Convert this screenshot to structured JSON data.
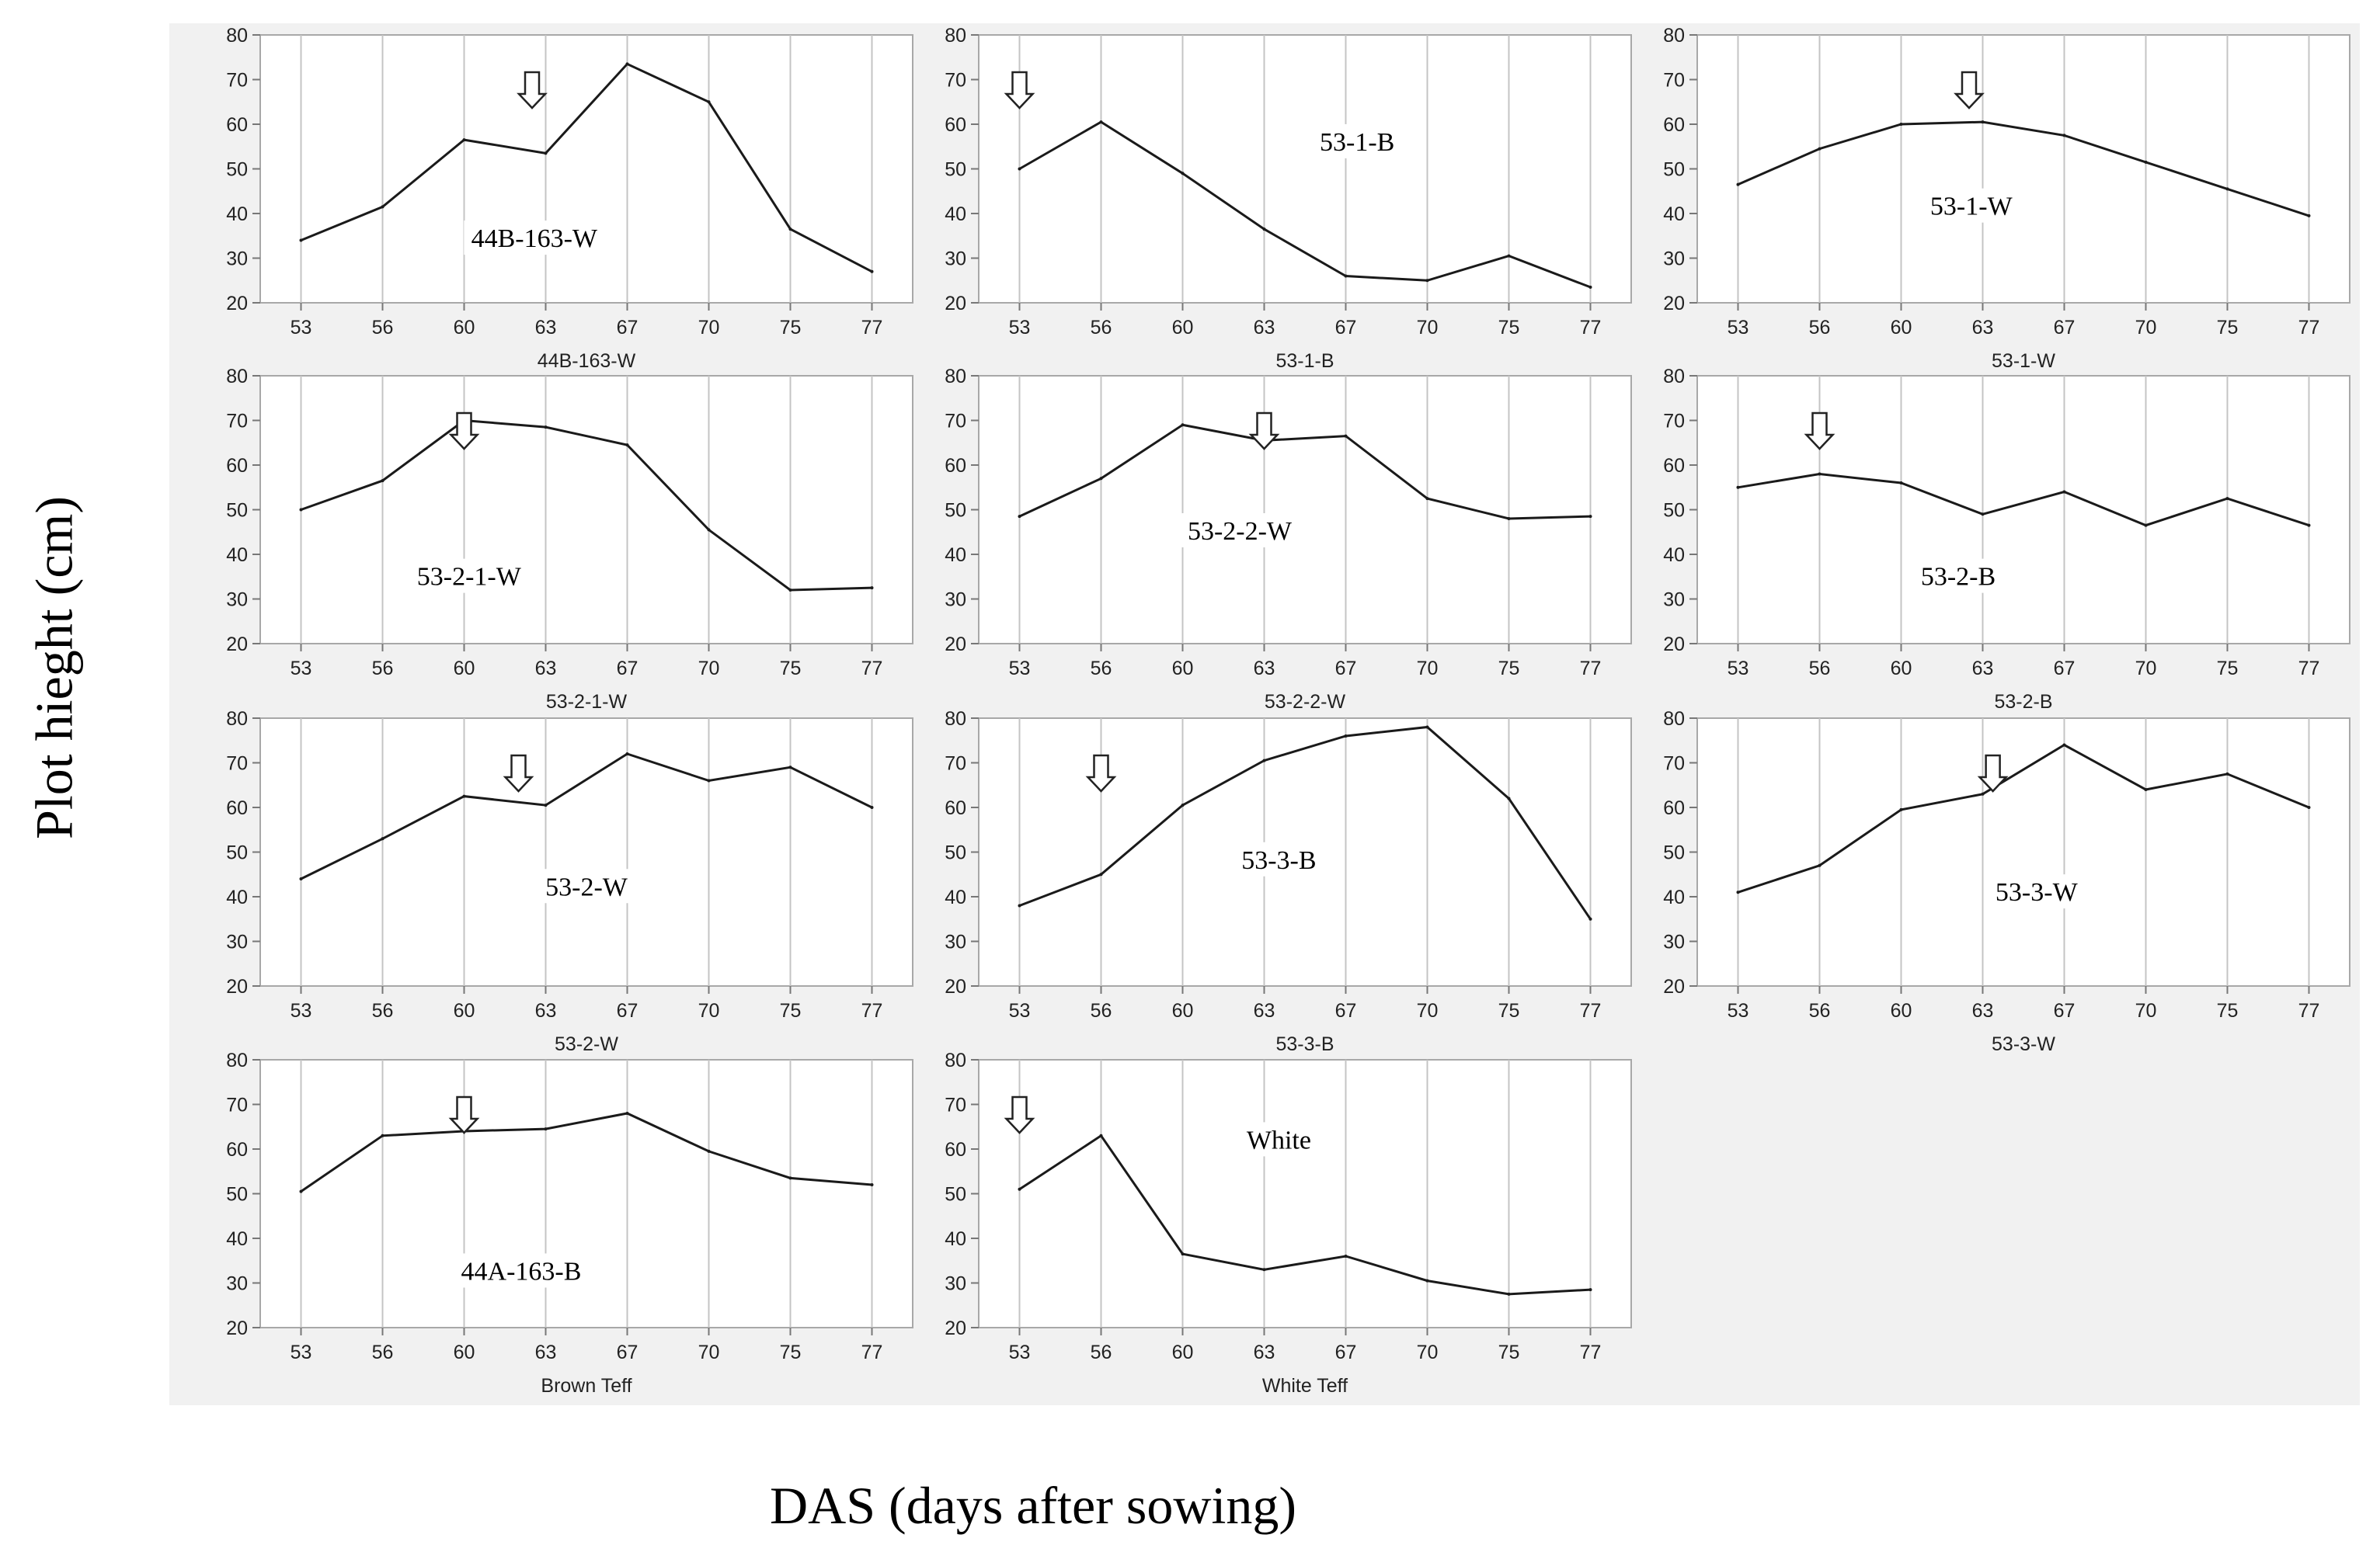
{
  "figure": {
    "y_axis_label": "Plot hieght (cm)",
    "x_axis_label": "DAS (days after sowing)"
  },
  "chart_data": [
    {
      "type": "line",
      "title": "44B-163-W",
      "inner_label": "44B-163-W",
      "xlabel": "44B-163-W",
      "categories": [
        "53",
        "56",
        "60",
        "63",
        "67",
        "70",
        "75",
        "77"
      ],
      "values": [
        34,
        41.5,
        56.5,
        53.5,
        73.5,
        65,
        36.5,
        27
      ],
      "ylim": [
        20,
        80
      ],
      "yticks": [
        20,
        30,
        40,
        50,
        60,
        70,
        80
      ],
      "arrow_x": 62.5
    },
    {
      "type": "line",
      "title": "53-1-B",
      "inner_label": "53-1-B",
      "xlabel": "53-1-B",
      "categories": [
        "53",
        "56",
        "60",
        "63",
        "67",
        "70",
        "75",
        "77"
      ],
      "values": [
        50,
        60.5,
        49,
        36.5,
        26,
        25,
        30.5,
        23.5
      ],
      "ylim": [
        20,
        80
      ],
      "yticks": [
        20,
        30,
        40,
        50,
        60,
        70,
        80
      ],
      "arrow_x": 53
    },
    {
      "type": "line",
      "title": "53-1-W",
      "inner_label": "53-1-W",
      "xlabel": "53-1-W",
      "categories": [
        "53",
        "56",
        "60",
        "63",
        "67",
        "70",
        "75",
        "77"
      ],
      "values": [
        46.5,
        54.5,
        60,
        60.5,
        57.5,
        51.5,
        45.5,
        39.5
      ],
      "ylim": [
        20,
        80
      ],
      "yticks": [
        20,
        30,
        40,
        50,
        60,
        70,
        80
      ],
      "arrow_x": 62.5
    },
    {
      "type": "line",
      "title": "53-2-1-W",
      "inner_label": "53-2-1-W",
      "xlabel": "53-2-1-W",
      "categories": [
        "53",
        "56",
        "60",
        "63",
        "67",
        "70",
        "75",
        "77"
      ],
      "values": [
        50,
        56.5,
        70,
        68.5,
        64.5,
        45.5,
        32,
        32.5
      ],
      "ylim": [
        20,
        80
      ],
      "yticks": [
        20,
        30,
        40,
        50,
        60,
        70,
        80
      ],
      "arrow_x": 60
    },
    {
      "type": "line",
      "title": "53-2-2-W",
      "inner_label": "53-2-2-W",
      "xlabel": "53-2-2-W",
      "categories": [
        "53",
        "56",
        "60",
        "63",
        "67",
        "70",
        "75",
        "77"
      ],
      "values": [
        48.5,
        57,
        69,
        65.5,
        66.5,
        52.5,
        48,
        48.5
      ],
      "ylim": [
        20,
        80
      ],
      "yticks": [
        20,
        30,
        40,
        50,
        60,
        70,
        80
      ],
      "arrow_x": 63
    },
    {
      "type": "line",
      "title": "53-2-B",
      "inner_label": "53-2-B",
      "xlabel": "53-2-B",
      "categories": [
        "53",
        "56",
        "60",
        "63",
        "67",
        "70",
        "75",
        "77"
      ],
      "values": [
        55,
        58,
        56,
        49,
        54,
        46.5,
        52.5,
        46.5
      ],
      "ylim": [
        20,
        80
      ],
      "yticks": [
        20,
        30,
        40,
        50,
        60,
        70,
        80
      ],
      "arrow_x": 56
    },
    {
      "type": "line",
      "title": "53-2-W",
      "inner_label": "53-2-W",
      "xlabel": "53-2-W",
      "categories": [
        "53",
        "56",
        "60",
        "63",
        "67",
        "70",
        "75",
        "77"
      ],
      "values": [
        44,
        53,
        62.5,
        60.5,
        72,
        66,
        69,
        60
      ],
      "ylim": [
        20,
        80
      ],
      "yticks": [
        20,
        30,
        40,
        50,
        60,
        70,
        80
      ],
      "arrow_x": 62
    },
    {
      "type": "line",
      "title": "53-3-B",
      "inner_label": "53-3-B",
      "xlabel": "53-3-B",
      "categories": [
        "53",
        "56",
        "60",
        "63",
        "67",
        "70",
        "75",
        "77"
      ],
      "values": [
        38,
        45,
        60.5,
        70.5,
        76,
        78,
        62,
        35
      ],
      "ylim": [
        20,
        80
      ],
      "yticks": [
        20,
        30,
        40,
        50,
        60,
        70,
        80
      ],
      "arrow_x": 56
    },
    {
      "type": "line",
      "title": "53-3-W",
      "inner_label": "53-3-W",
      "xlabel": "53-3-W",
      "categories": [
        "53",
        "56",
        "60",
        "63",
        "67",
        "70",
        "75",
        "77"
      ],
      "values": [
        41,
        47,
        59.5,
        63,
        74,
        64,
        67.5,
        60
      ],
      "ylim": [
        20,
        80
      ],
      "yticks": [
        20,
        30,
        40,
        50,
        60,
        70,
        80
      ],
      "arrow_x": 63.5
    },
    {
      "type": "line",
      "title": "Brown Teff",
      "inner_label": "44A-163-B",
      "xlabel": "Brown Teff",
      "categories": [
        "53",
        "56",
        "60",
        "63",
        "67",
        "70",
        "75",
        "77"
      ],
      "values": [
        50.5,
        63,
        64,
        64.5,
        68,
        59.5,
        53.5,
        52
      ],
      "ylim": [
        20,
        80
      ],
      "yticks": [
        20,
        30,
        40,
        50,
        60,
        70,
        80
      ],
      "arrow_x": 60
    },
    {
      "type": "line",
      "title": "White Teff",
      "inner_label": "White",
      "xlabel": "White Teff",
      "categories": [
        "53",
        "56",
        "60",
        "63",
        "67",
        "70",
        "75",
        "77"
      ],
      "values": [
        51,
        63,
        36.5,
        33,
        36,
        30.5,
        27.5,
        28.5
      ],
      "ylim": [
        20,
        80
      ],
      "yticks": [
        20,
        30,
        40,
        50,
        60,
        70,
        80
      ],
      "arrow_x": 53
    }
  ]
}
